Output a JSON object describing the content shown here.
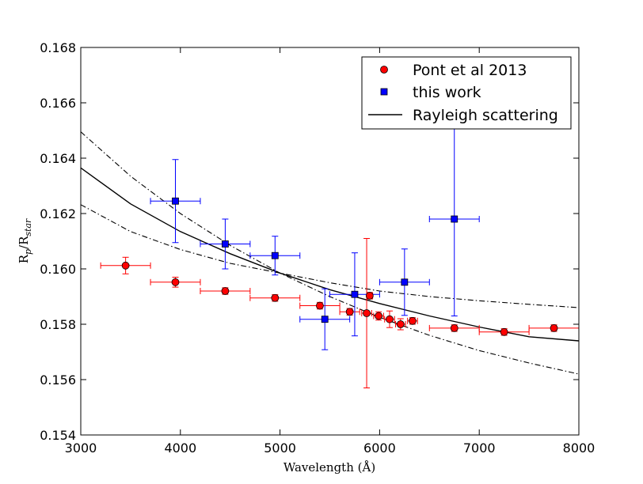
{
  "chart_data": {
    "type": "scatter",
    "title": "",
    "xlabel": "Wavelength (Å)",
    "ylabel": "Rp/Rstar",
    "ylabel_main": "R",
    "ylabel_sub1": "p",
    "ylabel_slash": "/R",
    "ylabel_sub2": "star",
    "xlim": [
      3000,
      8000
    ],
    "ylim": [
      0.154,
      0.168
    ],
    "xticks": [
      3000,
      4000,
      5000,
      6000,
      7000,
      8000
    ],
    "yticks": [
      0.154,
      0.156,
      0.158,
      0.16,
      0.162,
      0.164,
      0.166,
      0.168
    ],
    "xtick_labels": [
      "3000",
      "4000",
      "5000",
      "6000",
      "7000",
      "8000"
    ],
    "ytick_labels": [
      "0.154",
      "0.156",
      "0.158",
      "0.160",
      "0.162",
      "0.164",
      "0.166",
      "0.168"
    ],
    "grid": false,
    "legend_position": "top-right",
    "series": [
      {
        "name": "Pont et al 2013",
        "marker": "circle",
        "color": "#ff0000",
        "points": [
          {
            "x": 3450,
            "y": 0.16012,
            "xerr": 250,
            "yerr": 0.0003
          },
          {
            "x": 3950,
            "y": 0.15952,
            "xerr": 250,
            "yerr": 0.00018
          },
          {
            "x": 4450,
            "y": 0.1592,
            "xerr": 250,
            "yerr": 0.00012
          },
          {
            "x": 4950,
            "y": 0.15895,
            "xerr": 250,
            "yerr": 0.00012
          },
          {
            "x": 5400,
            "y": 0.15867,
            "xerr": 200,
            "yerr": 0.00012
          },
          {
            "x": 5700,
            "y": 0.15845,
            "xerr": 100,
            "yerr": 0.00012
          },
          {
            "x": 5870,
            "y": 0.1584,
            "xerr": 50,
            "yerr": 0.0027
          },
          {
            "x": 5900,
            "y": 0.15903,
            "xerr": 30,
            "yerr": 0.00012
          },
          {
            "x": 5990,
            "y": 0.1583,
            "xerr": 50,
            "yerr": 0.00015
          },
          {
            "x": 6100,
            "y": 0.15818,
            "xerr": 50,
            "yerr": 0.0003
          },
          {
            "x": 6210,
            "y": 0.158,
            "xerr": 50,
            "yerr": 0.0002
          },
          {
            "x": 6330,
            "y": 0.15812,
            "xerr": 50,
            "yerr": 0.00012
          },
          {
            "x": 6750,
            "y": 0.15786,
            "xerr": 250,
            "yerr": 0.00012
          },
          {
            "x": 7250,
            "y": 0.15772,
            "xerr": 250,
            "yerr": 0.00012
          },
          {
            "x": 7750,
            "y": 0.15786,
            "xerr": 250,
            "yerr": 0.00012
          }
        ]
      },
      {
        "name": "this work",
        "marker": "square",
        "color": "#0000ff",
        "points": [
          {
            "x": 3950,
            "y": 0.16245,
            "xerr": 250,
            "yerr": 0.0015
          },
          {
            "x": 4450,
            "y": 0.1609,
            "xerr": 250,
            "yerr": 0.0009
          },
          {
            "x": 4950,
            "y": 0.16048,
            "xerr": 250,
            "yerr": 0.0007
          },
          {
            "x": 5450,
            "y": 0.15818,
            "xerr": 250,
            "yerr": 0.0011
          },
          {
            "x": 5750,
            "y": 0.15908,
            "xerr": 250,
            "yerr": 0.0015
          },
          {
            "x": 6250,
            "y": 0.15952,
            "xerr": 250,
            "yerr": 0.0012
          },
          {
            "x": 6750,
            "y": 0.1618,
            "xerr": 250,
            "yerr": 0.0035
          }
        ]
      },
      {
        "name": "Rayleigh scattering",
        "style": "solid",
        "color": "#000000",
        "points": [
          {
            "x": 3000,
            "y": 0.16365
          },
          {
            "x": 3500,
            "y": 0.16235
          },
          {
            "x": 4000,
            "y": 0.16135
          },
          {
            "x": 4500,
            "y": 0.16055
          },
          {
            "x": 5000,
            "y": 0.15985
          },
          {
            "x": 5500,
            "y": 0.15925
          },
          {
            "x": 6000,
            "y": 0.15875
          },
          {
            "x": 6500,
            "y": 0.1583
          },
          {
            "x": 7000,
            "y": 0.1579
          },
          {
            "x": 7500,
            "y": 0.15755
          },
          {
            "x": 8000,
            "y": 0.1574
          }
        ]
      },
      {
        "style": "dashdot",
        "color": "#000000",
        "points": [
          {
            "x": 3000,
            "y": 0.16495
          },
          {
            "x": 3500,
            "y": 0.16335
          },
          {
            "x": 4000,
            "y": 0.162
          },
          {
            "x": 4500,
            "y": 0.16085
          },
          {
            "x": 5000,
            "y": 0.15985
          },
          {
            "x": 5500,
            "y": 0.159
          },
          {
            "x": 6000,
            "y": 0.15825
          },
          {
            "x": 6500,
            "y": 0.1576
          },
          {
            "x": 7000,
            "y": 0.15705
          },
          {
            "x": 7500,
            "y": 0.1566
          },
          {
            "x": 8000,
            "y": 0.1562
          }
        ]
      },
      {
        "style": "dashdot",
        "color": "#000000",
        "points": [
          {
            "x": 3000,
            "y": 0.16232
          },
          {
            "x": 3500,
            "y": 0.16135
          },
          {
            "x": 4000,
            "y": 0.1607
          },
          {
            "x": 4500,
            "y": 0.1602
          },
          {
            "x": 5000,
            "y": 0.15985
          },
          {
            "x": 5500,
            "y": 0.1595
          },
          {
            "x": 6000,
            "y": 0.1592
          },
          {
            "x": 6500,
            "y": 0.159
          },
          {
            "x": 7000,
            "y": 0.15885
          },
          {
            "x": 7500,
            "y": 0.15872
          },
          {
            "x": 8000,
            "y": 0.1586
          }
        ]
      }
    ]
  }
}
